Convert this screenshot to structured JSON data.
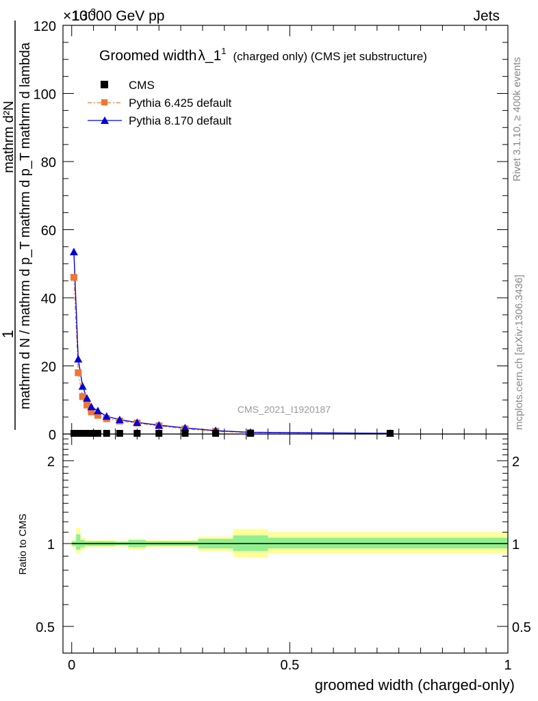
{
  "header": {
    "left": "13000 GeV pp",
    "right": "Jets",
    "exponent_prefix": "×10",
    "exponent_power": "-3"
  },
  "side_labels": {
    "rivet": "Rivet 3.1.10, ≥ 400k events",
    "mcplots": "mcplots.cern.ch [arXiv:1306.3436]"
  },
  "watermark": "CMS_2021_I1920187",
  "legend": {
    "title_main": "Groomed width",
    "title_lambda": "λ_1",
    "title_sup": "1",
    "title_rest": "(charged only) (CMS jet substructure)"
  },
  "colors": {
    "data": "#000000",
    "pythia6": "#ee7733",
    "pythia8": "#0000dd",
    "band_inner": "#90f090",
    "band_outer": "#ffff99"
  },
  "chart_data": [
    {
      "type": "line",
      "panel": "main",
      "xlabel": "groomed width (charged-only)",
      "ylabel_numerator": "1",
      "ylabel_denominator": "mathrm d N / mathrm d p_T mathrm d p_T mathrm d lambda",
      "ylabel_top": "mathrm d²N",
      "xlim": [
        -0.02,
        1.0
      ],
      "ylim": [
        0,
        120
      ],
      "yscale_factor": "×10^-3",
      "yticks": [
        0,
        20,
        40,
        60,
        80,
        100,
        120
      ],
      "xticks": [
        0,
        0.5,
        1
      ],
      "series": [
        {
          "name": "CMS",
          "marker": "square",
          "x": [
            0.005,
            0.015,
            0.025,
            0.035,
            0.045,
            0.06,
            0.08,
            0.11,
            0.15,
            0.2,
            0.26,
            0.33,
            0.41,
            0.73
          ],
          "values": [
            0.2,
            0.2,
            0.2,
            0.2,
            0.2,
            0.2,
            0.2,
            0.2,
            0.2,
            0.2,
            0.2,
            0.2,
            0.2,
            0.2
          ]
        },
        {
          "name": "Pythia 6.425 default",
          "marker": "square-dashdot",
          "x": [
            0.005,
            0.015,
            0.025,
            0.035,
            0.045,
            0.06,
            0.08,
            0.11,
            0.15,
            0.2,
            0.26,
            0.33,
            0.41,
            0.73
          ],
          "values": [
            46,
            18,
            11,
            8.5,
            6.5,
            5.5,
            4.5,
            3.8,
            3.2,
            2.4,
            1.5,
            0.8,
            0.4,
            0.2
          ]
        },
        {
          "name": "Pythia 8.170 default",
          "marker": "triangle",
          "x": [
            0.005,
            0.015,
            0.025,
            0.035,
            0.045,
            0.06,
            0.08,
            0.11,
            0.15,
            0.2,
            0.26,
            0.33,
            0.41,
            0.73
          ],
          "values": [
            53.5,
            22,
            14,
            10.5,
            8,
            6.8,
            5.2,
            4.2,
            3.4,
            2.6,
            1.8,
            1.0,
            0.5,
            0.2
          ]
        }
      ]
    },
    {
      "type": "line",
      "panel": "ratio",
      "ylabel": "Ratio to CMS",
      "xlim": [
        -0.02,
        1.0
      ],
      "ylim_log": [
        0.4,
        2.5
      ],
      "yticks": [
        0.5,
        1,
        2
      ],
      "ytick_labels": [
        "0.5",
        "1",
        "2"
      ],
      "xticks": [
        0,
        0.5,
        1
      ],
      "xtick_labels": [
        "0",
        "0.5",
        "1"
      ],
      "bands": [
        {
          "x0": 0.0,
          "x1": 0.01,
          "inner": [
            0.98,
            1.02
          ],
          "outer": [
            0.97,
            1.03
          ]
        },
        {
          "x0": 0.01,
          "x1": 0.02,
          "inner": [
            0.95,
            1.08
          ],
          "outer": [
            0.92,
            1.14
          ]
        },
        {
          "x0": 0.02,
          "x1": 0.03,
          "inner": [
            0.97,
            1.03
          ],
          "outer": [
            0.95,
            1.05
          ]
        },
        {
          "x0": 0.03,
          "x1": 0.05,
          "inner": [
            0.98,
            1.02
          ],
          "outer": [
            0.97,
            1.03
          ]
        },
        {
          "x0": 0.05,
          "x1": 0.1,
          "inner": [
            0.98,
            1.02
          ],
          "outer": [
            0.97,
            1.03
          ]
        },
        {
          "x0": 0.1,
          "x1": 0.13,
          "inner": [
            0.985,
            1.015
          ],
          "outer": [
            0.975,
            1.025
          ]
        },
        {
          "x0": 0.13,
          "x1": 0.17,
          "inner": [
            0.97,
            1.03
          ],
          "outer": [
            0.95,
            1.04
          ]
        },
        {
          "x0": 0.17,
          "x1": 0.29,
          "inner": [
            0.98,
            1.02
          ],
          "outer": [
            0.97,
            1.03
          ]
        },
        {
          "x0": 0.29,
          "x1": 0.37,
          "inner": [
            0.96,
            1.04
          ],
          "outer": [
            0.94,
            1.06
          ]
        },
        {
          "x0": 0.37,
          "x1": 0.45,
          "inner": [
            0.94,
            1.07
          ],
          "outer": [
            0.89,
            1.13
          ]
        },
        {
          "x0": 0.45,
          "x1": 1.0,
          "inner": [
            0.96,
            1.05
          ],
          "outer": [
            0.92,
            1.1
          ]
        }
      ],
      "series": [
        {
          "name": "CMS",
          "values_const": 1
        }
      ]
    }
  ]
}
